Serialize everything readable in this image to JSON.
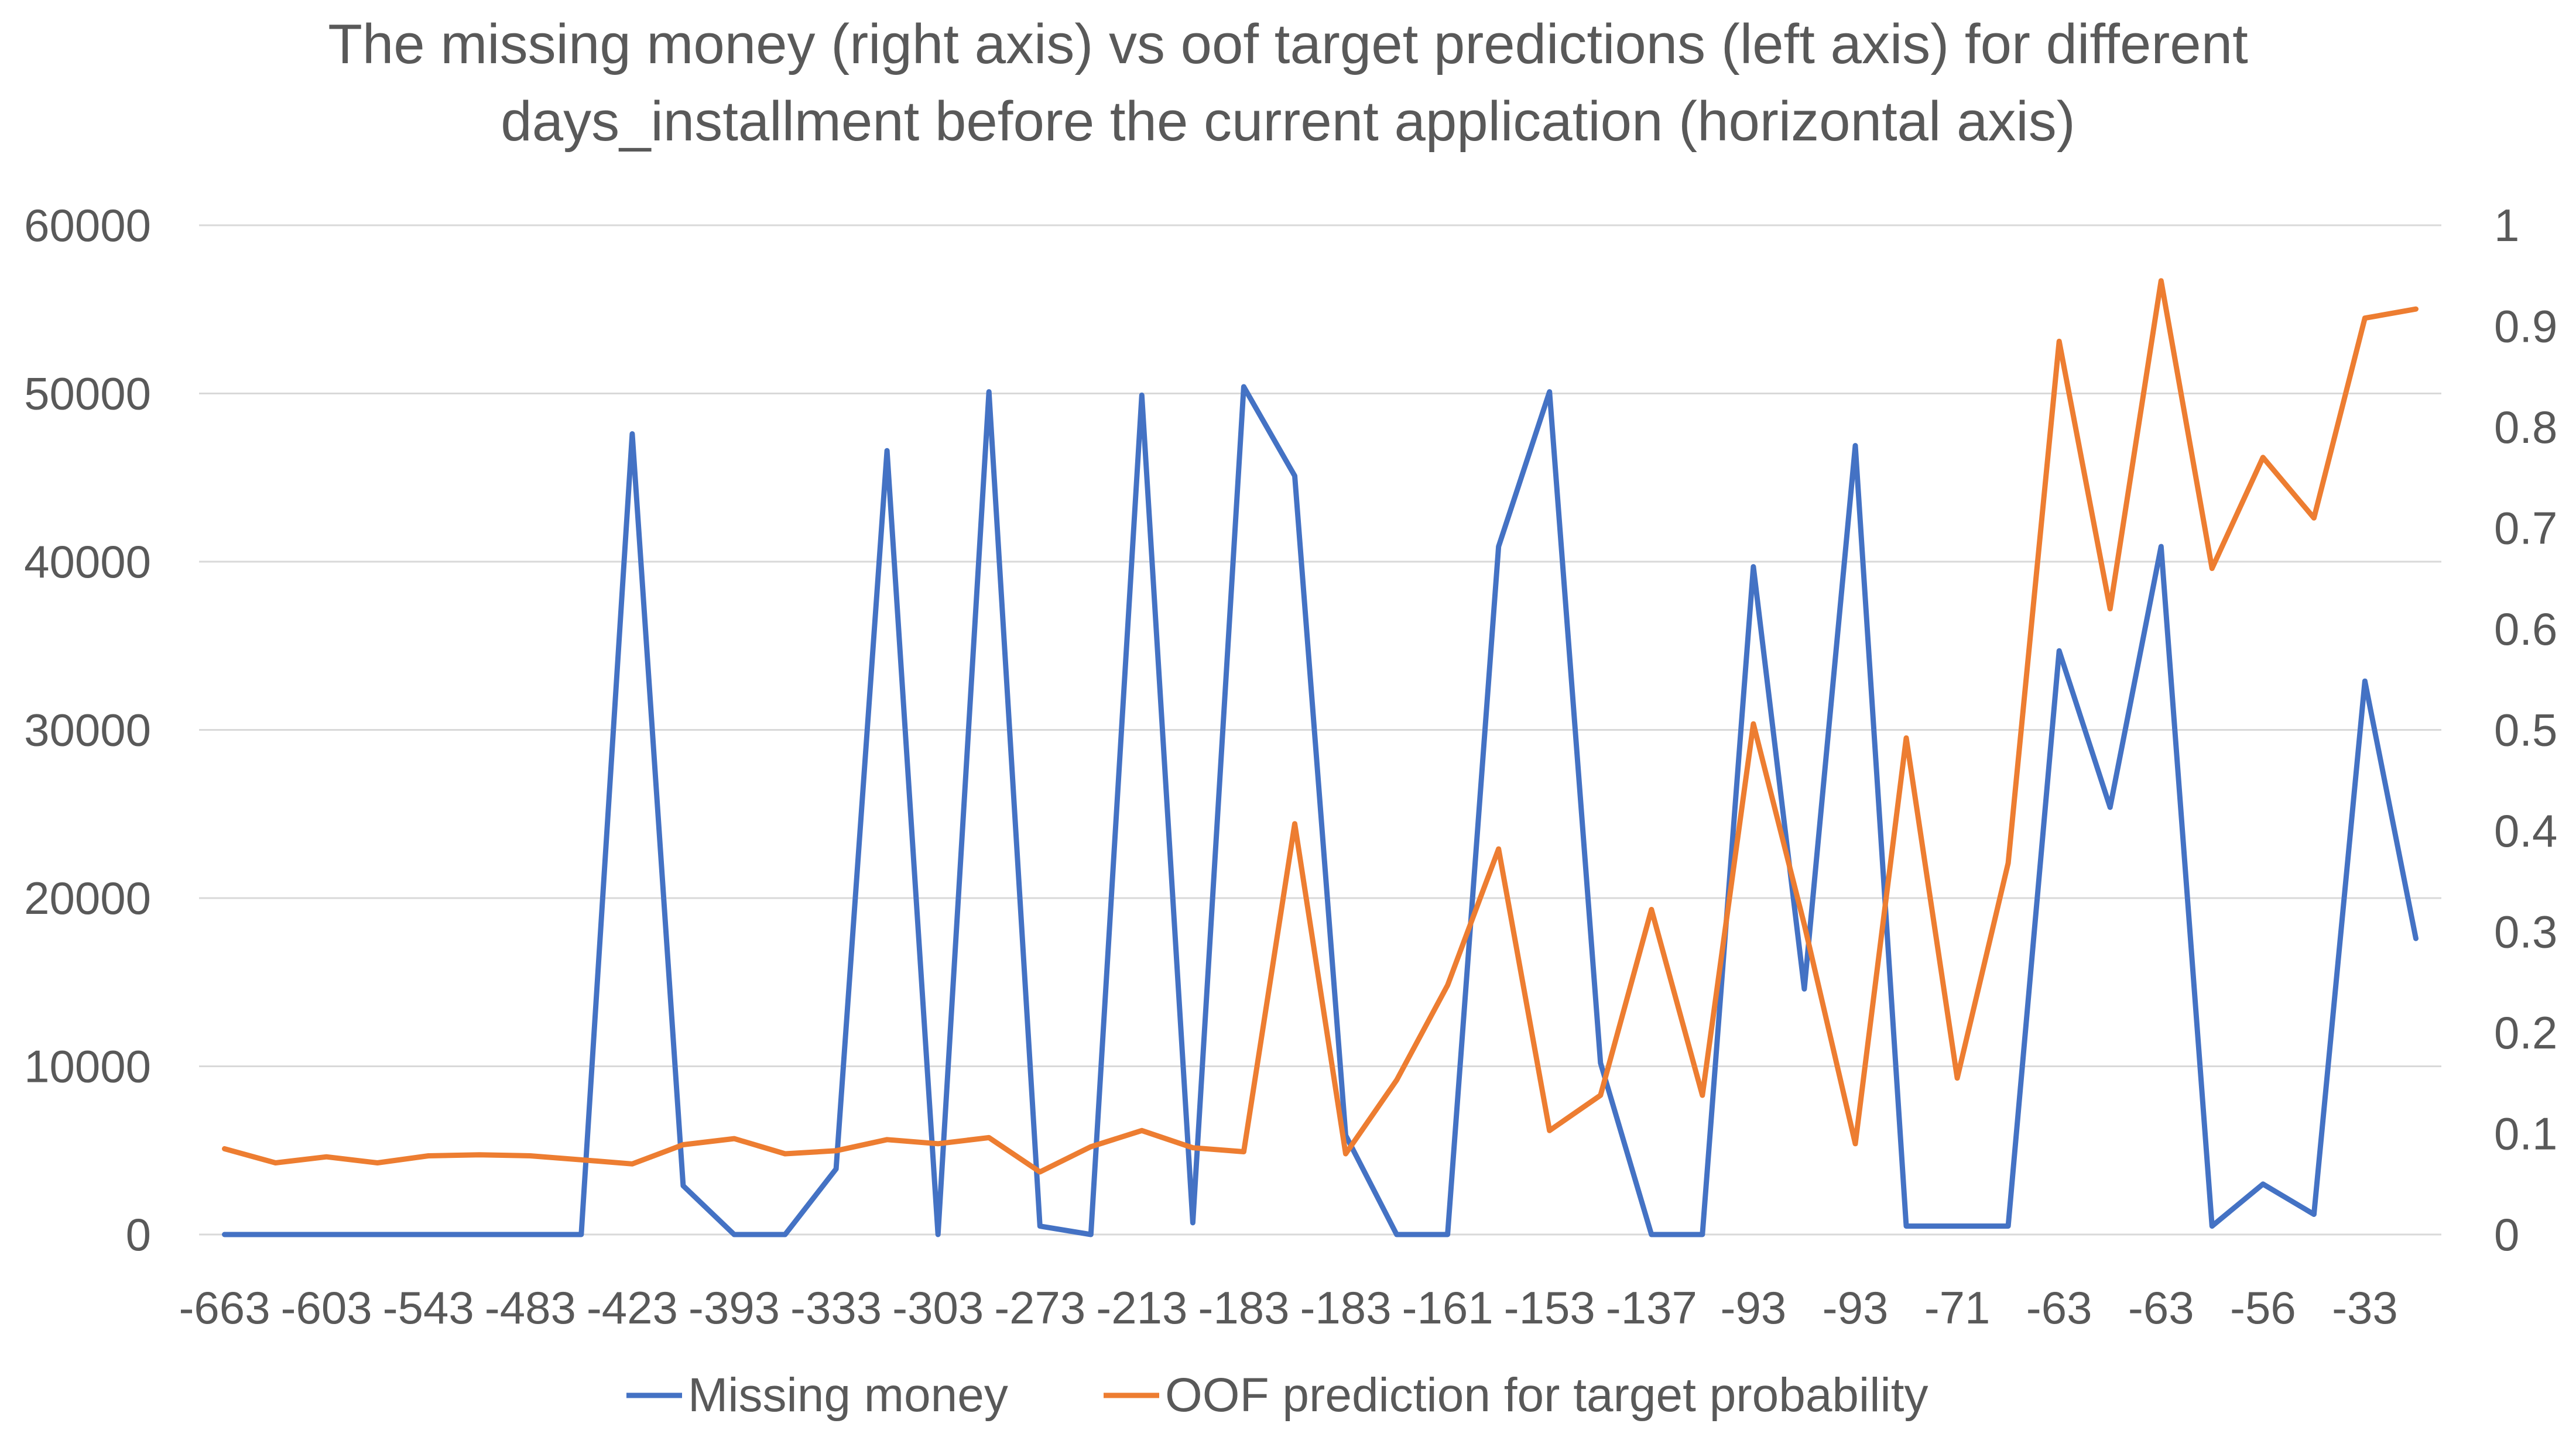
{
  "chart_data": {
    "type": "line",
    "title_line1": "The missing money (right axis) vs oof target predictions (left axis) for different",
    "title_line2": "days_installment before the current application (horizontal axis)",
    "x_tick_labels": [
      "-663",
      "-603",
      "-543",
      "-483",
      "-423",
      "-393",
      "-333",
      "-303",
      "-273",
      "-213",
      "-183",
      "-183",
      "-161",
      "-153",
      "-137",
      "-93",
      "-93",
      "-71",
      "-63",
      "-63",
      "-56",
      "-33"
    ],
    "point_count": 44,
    "left_axis": {
      "ticks": [
        "0",
        "10000",
        "20000",
        "30000",
        "40000",
        "50000",
        "60000"
      ],
      "range": [
        0,
        60000
      ]
    },
    "right_axis": {
      "ticks": [
        "0",
        "0.1",
        "0.2",
        "0.3",
        "0.4",
        "0.5",
        "0.6",
        "0.7",
        "0.8",
        "0.9",
        "1"
      ],
      "range": [
        0,
        1
      ]
    },
    "grid": "horizontal",
    "legend_position": "bottom",
    "series": [
      {
        "name": "Missing money",
        "color": "#4472C4",
        "axis": "left",
        "values": [
          0,
          0,
          0,
          0,
          0,
          0,
          0,
          0,
          47600,
          2900,
          0,
          0,
          3900,
          46600,
          0,
          50100,
          500,
          0,
          49900,
          700,
          50400,
          45100,
          5900,
          0,
          0,
          40900,
          50100,
          10200,
          0,
          0,
          39700,
          14600,
          46900,
          500,
          500,
          500,
          34700,
          25400,
          40900,
          500,
          3000,
          1200,
          32900,
          17600
        ]
      },
      {
        "name": "OOF prediction for target probability",
        "color": "#ED7D31",
        "axis": "right",
        "values": [
          0.085,
          0.071,
          0.077,
          0.071,
          0.078,
          0.079,
          0.078,
          0.074,
          0.07,
          0.089,
          0.095,
          0.08,
          0.083,
          0.094,
          0.09,
          0.096,
          0.062,
          0.087,
          0.103,
          0.086,
          0.082,
          0.407,
          0.08,
          0.153,
          0.247,
          0.382,
          0.103,
          0.138,
          0.322,
          0.138,
          0.506,
          0.307,
          0.09,
          0.492,
          0.155,
          0.368,
          0.885,
          0.62,
          0.945,
          0.66,
          0.77,
          0.71,
          0.908,
          0.917
        ]
      }
    ]
  }
}
